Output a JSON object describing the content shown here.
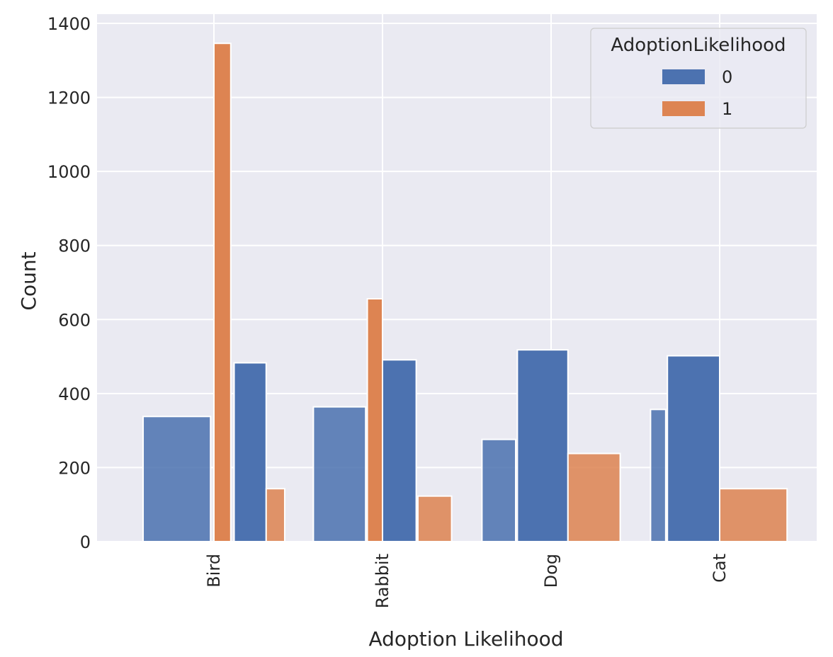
{
  "chart_data": {
    "type": "bar",
    "xlabel": "Adoption Likelihood",
    "ylabel": "Count",
    "categories": [
      "Bird",
      "Rabbit",
      "Dog",
      "Cat"
    ],
    "ylim": [
      0,
      1400
    ],
    "yticks": [
      0,
      200,
      400,
      600,
      800,
      1000,
      1200,
      1400
    ],
    "grid": true,
    "legend": {
      "title": "AdoptionLikelihood",
      "placement": "top-right",
      "entries": [
        {
          "label": "0",
          "color": "#4c72b0"
        },
        {
          "label": "1",
          "color": "#dd8452"
        }
      ]
    },
    "bars": [
      {
        "category": "Bird",
        "x_start": -0.42,
        "x_end": -0.02,
        "value": 338,
        "hue": "0"
      },
      {
        "category": "Bird",
        "x_start": 0.0,
        "x_end": 0.1,
        "value": 1346,
        "hue": "1"
      },
      {
        "category": "Bird",
        "x_start": 0.12,
        "x_end": 0.31,
        "value": 483,
        "hue": "0"
      },
      {
        "category": "Bird",
        "x_start": 0.31,
        "x_end": 0.42,
        "value": 143,
        "hue": "1"
      },
      {
        "category": "Rabbit",
        "x_start": -0.41,
        "x_end": -0.1,
        "value": 364,
        "hue": "0"
      },
      {
        "category": "Rabbit",
        "x_start": -0.09,
        "x_end": 0.0,
        "value": 656,
        "hue": "1"
      },
      {
        "category": "Rabbit",
        "x_start": 0.0,
        "x_end": 0.2,
        "value": 491,
        "hue": "0"
      },
      {
        "category": "Rabbit",
        "x_start": 0.21,
        "x_end": 0.41,
        "value": 123,
        "hue": "1"
      },
      {
        "category": "Dog",
        "x_start": -0.41,
        "x_end": -0.21,
        "value": 276,
        "hue": "0"
      },
      {
        "category": "Dog",
        "x_start": -0.2,
        "x_end": 0.1,
        "value": 518,
        "hue": "0"
      },
      {
        "category": "Dog",
        "x_start": 0.1,
        "x_end": 0.41,
        "value": 238,
        "hue": "1"
      },
      {
        "category": "Cat",
        "x_start": -0.41,
        "x_end": -0.32,
        "value": 357,
        "hue": "0"
      },
      {
        "category": "Cat",
        "x_start": -0.31,
        "x_end": 0.0,
        "value": 502,
        "hue": "0"
      },
      {
        "category": "Cat",
        "x_start": 0.0,
        "x_end": 0.4,
        "value": 143,
        "hue": "1"
      }
    ]
  },
  "style": {
    "plot_background": "#eaeaf2",
    "grid_color": "#ffffff",
    "bar_edge_color": "#ffffff",
    "hue_colors": {
      "0": "#4c72b0",
      "1": "#dd8452"
    },
    "muted_opacity": 0.86
  }
}
